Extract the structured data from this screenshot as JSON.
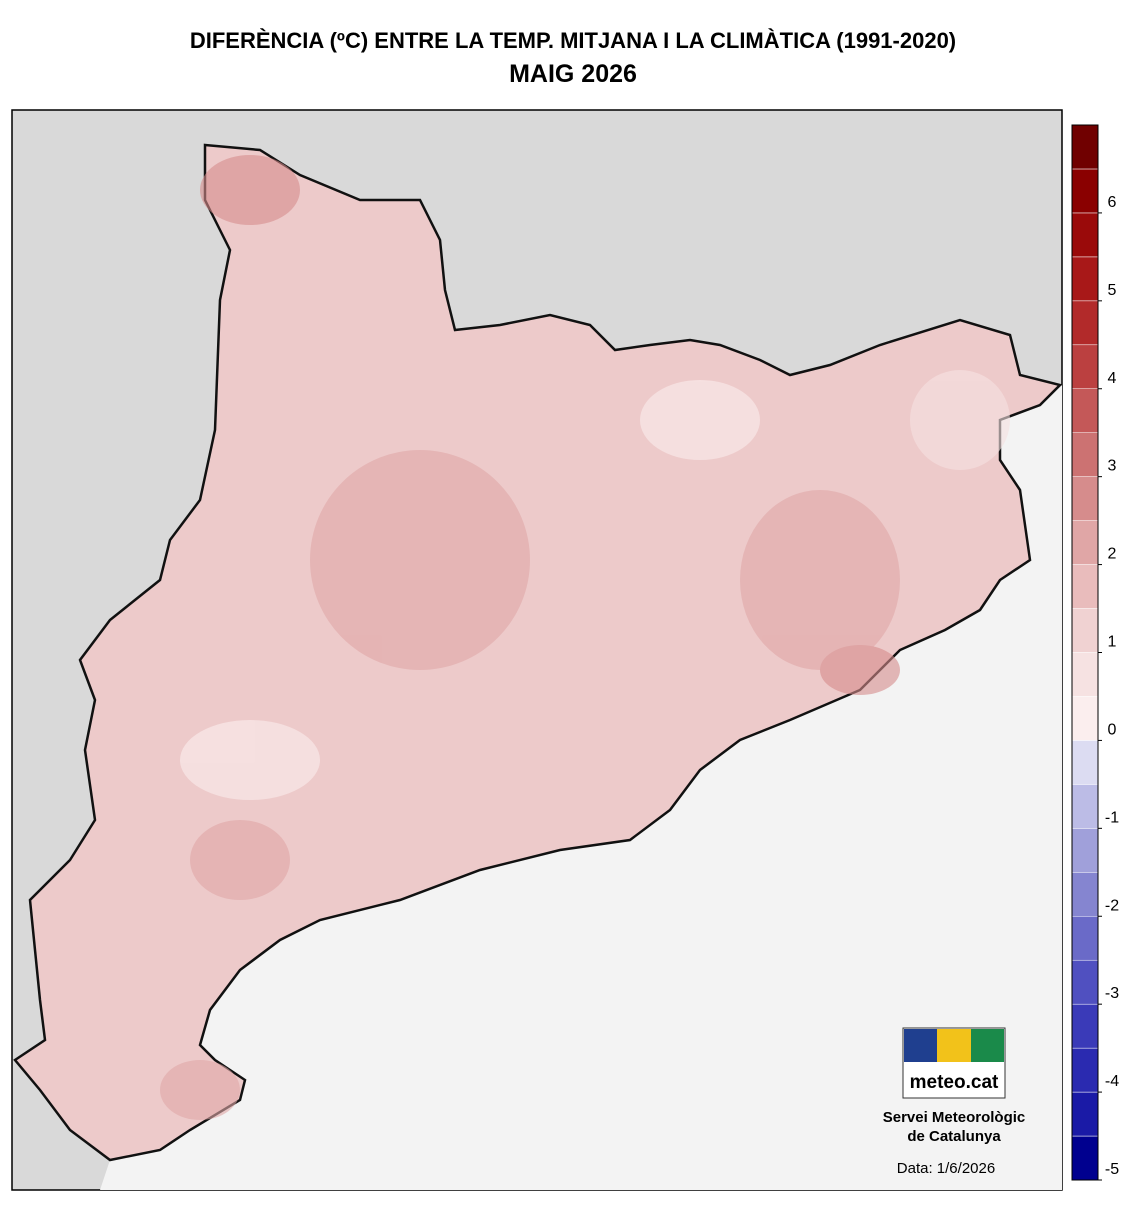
{
  "header": {
    "title": "DIFERÈNCIA (ºC) ENTRE LA TEMP. MITJANA I LA CLIMÀTICA (1991-2020)",
    "subtitle": "MAIG 2026"
  },
  "legend": {
    "range": [
      -5,
      7
    ],
    "ticks": [
      6,
      5,
      4,
      3,
      2,
      1,
      0,
      -1,
      -2,
      -3,
      -4,
      -5
    ],
    "colors": [
      "#00008f",
      "#1a1aa6",
      "#2a2ab0",
      "#3a3ab8",
      "#5050c0",
      "#6a6ac8",
      "#8585d0",
      "#a0a0da",
      "#bcbce6",
      "#dcdcf2",
      "#fbeeee",
      "#f6e2e2",
      "#f0d2d2",
      "#e9bcbc",
      "#e0a6a6",
      "#d68c8c",
      "#cc7272",
      "#c45858",
      "#bb4040",
      "#b22a2a",
      "#a81818",
      "#9a0a0a",
      "#8a0000",
      "#700000"
    ]
  },
  "logo": {
    "text": "meteo.cat"
  },
  "footer": {
    "agency_line1": "Servei Meteorològic",
    "agency_line2": "de Catalunya",
    "date": "Data: 1/6/2026"
  }
}
